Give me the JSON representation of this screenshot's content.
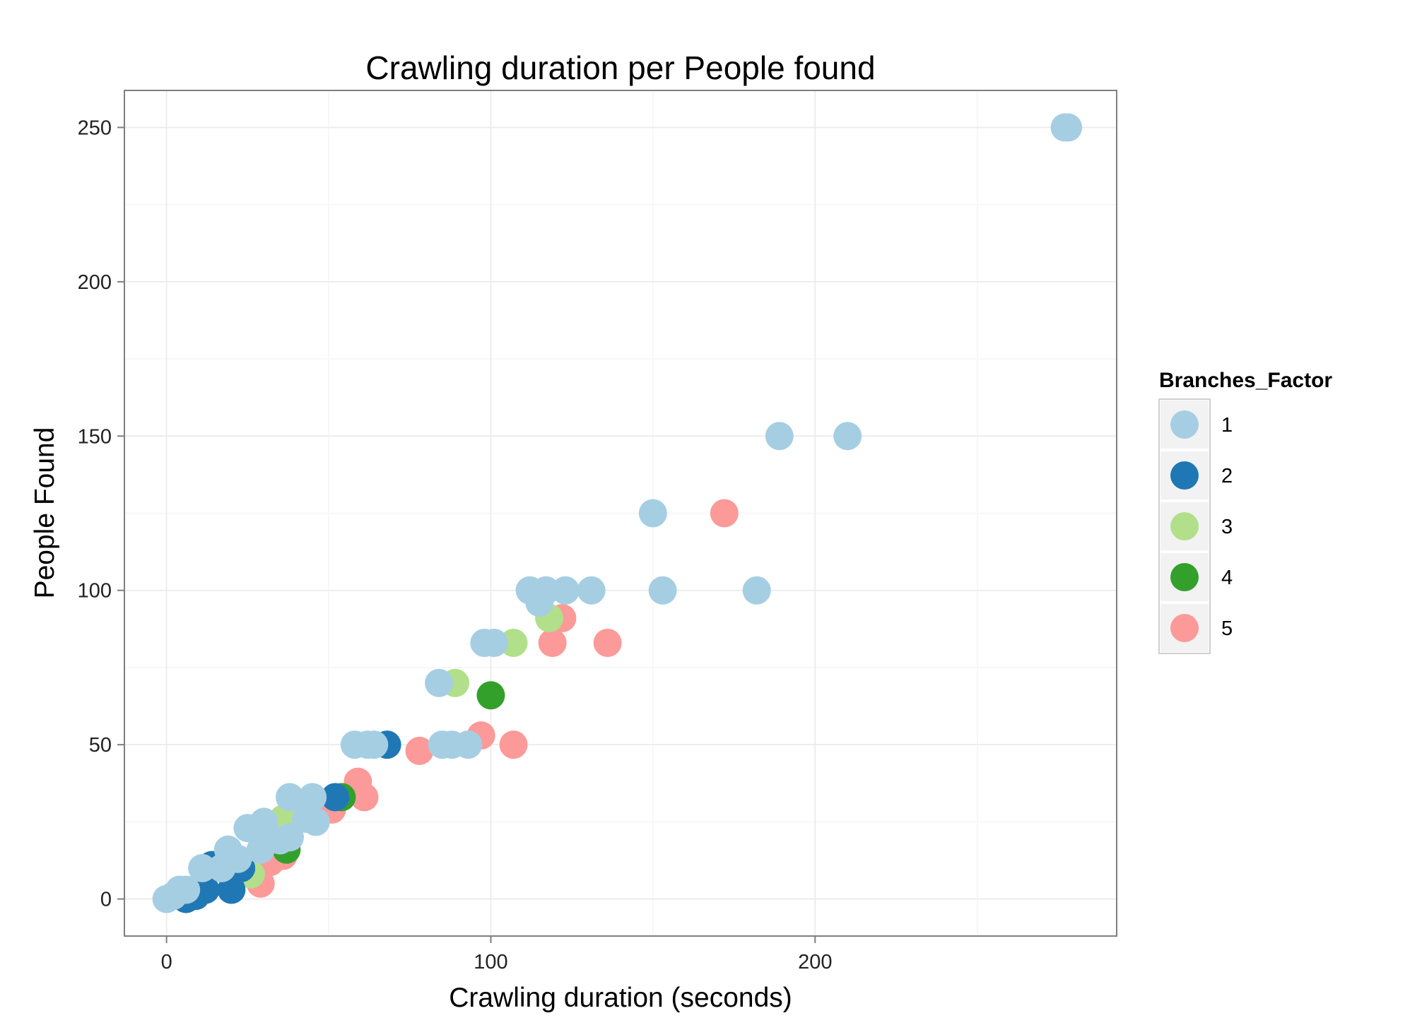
{
  "chart_data": {
    "type": "scatter",
    "title": "Crawling duration per People found",
    "xlabel": "Crawling duration (seconds)",
    "ylabel": "People Found",
    "xlim": [
      -13,
      293
    ],
    "ylim": [
      -12,
      262
    ],
    "xticks": [
      0,
      100,
      200
    ],
    "xticks_minor": [
      50,
      150,
      250
    ],
    "yticks": [
      0,
      50,
      100,
      150,
      200,
      250
    ],
    "yticks_minor": [
      25,
      75,
      125,
      175,
      225
    ],
    "grid": true,
    "legend": {
      "title": "Branches_Factor",
      "position": "right",
      "entries": [
        {
          "label": "1",
          "color": "#a6cee3"
        },
        {
          "label": "2",
          "color": "#1f78b4"
        },
        {
          "label": "3",
          "color": "#b2df8a"
        },
        {
          "label": "4",
          "color": "#33a02c"
        },
        {
          "label": "5",
          "color": "#fb9a99"
        }
      ]
    },
    "series": [
      {
        "name": "5",
        "color": "#fb9a99",
        "points": [
          [
            29,
            5
          ],
          [
            32,
            12
          ],
          [
            36,
            14
          ],
          [
            51,
            29
          ],
          [
            59,
            38
          ],
          [
            61,
            33
          ],
          [
            78,
            48
          ],
          [
            97,
            53
          ],
          [
            107,
            50
          ],
          [
            119,
            83
          ],
          [
            122,
            91
          ],
          [
            136,
            83
          ],
          [
            172,
            125
          ]
        ]
      },
      {
        "name": "4",
        "color": "#33a02c",
        "points": [
          [
            37,
            16
          ],
          [
            54,
            33
          ],
          [
            100,
            66
          ]
        ]
      },
      {
        "name": "3",
        "color": "#b2df8a",
        "points": [
          [
            26,
            8
          ],
          [
            36,
            26
          ],
          [
            89,
            70
          ],
          [
            107,
            83
          ],
          [
            118,
            91
          ],
          [
            123,
            100
          ]
        ]
      },
      {
        "name": "2",
        "color": "#1f78b4",
        "points": [
          [
            6,
            0
          ],
          [
            9,
            1
          ],
          [
            12,
            3
          ],
          [
            14,
            11
          ],
          [
            20,
            3
          ],
          [
            23,
            10
          ],
          [
            52,
            33
          ],
          [
            68,
            50
          ]
        ]
      },
      {
        "name": "1",
        "color": "#a6cee3",
        "points": [
          [
            0,
            0
          ],
          [
            2,
            1
          ],
          [
            4,
            3
          ],
          [
            6,
            3
          ],
          [
            11,
            10
          ],
          [
            17,
            10
          ],
          [
            19,
            16
          ],
          [
            22,
            13
          ],
          [
            25,
            23
          ],
          [
            29,
            16
          ],
          [
            30,
            25
          ],
          [
            32,
            20
          ],
          [
            35,
            19
          ],
          [
            38,
            20
          ],
          [
            38,
            33
          ],
          [
            43,
            26
          ],
          [
            45,
            33
          ],
          [
            46,
            25
          ],
          [
            58,
            50
          ],
          [
            62,
            50
          ],
          [
            64,
            50
          ],
          [
            84,
            70
          ],
          [
            85,
            50
          ],
          [
            88,
            50
          ],
          [
            93,
            50
          ],
          [
            98,
            83
          ],
          [
            101,
            83
          ],
          [
            112,
            100
          ],
          [
            115,
            96
          ],
          [
            117,
            100
          ],
          [
            123,
            100
          ],
          [
            131,
            100
          ],
          [
            150,
            125
          ],
          [
            153,
            100
          ],
          [
            182,
            100
          ],
          [
            189,
            150
          ],
          [
            210,
            150
          ],
          [
            277,
            250
          ],
          [
            278,
            250
          ]
        ]
      }
    ]
  }
}
